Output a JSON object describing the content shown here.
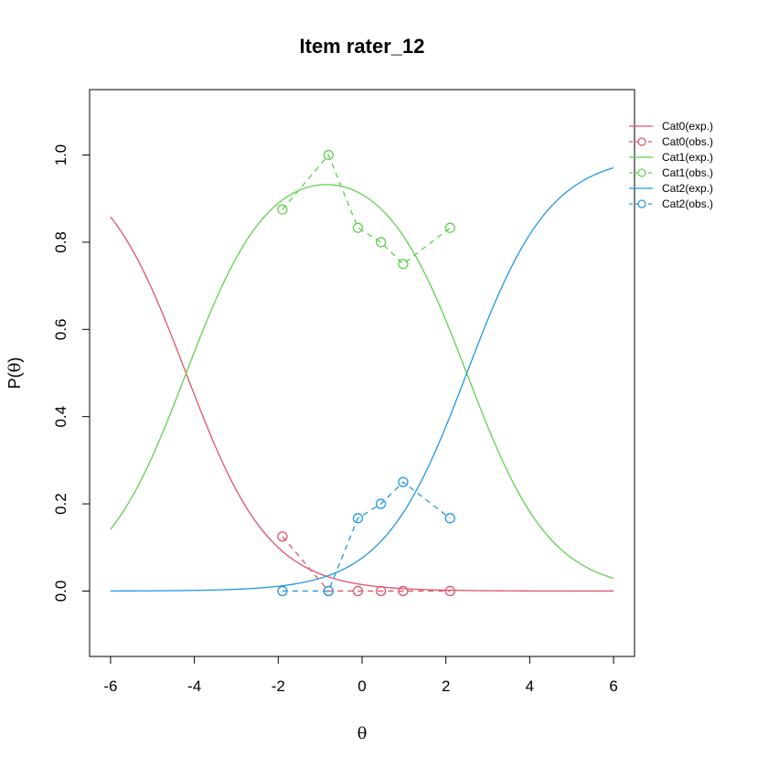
{
  "chart_data": {
    "type": "line",
    "title": "Item rater_12",
    "xlabel": "θ",
    "ylabel_prefix": "P(",
    "ylabel_symbol": "θ",
    "ylabel_suffix": ")",
    "xlim": [
      -6.5,
      6.5
    ],
    "ylim": [
      -0.15,
      1.15
    ],
    "x_ticks": [
      -6,
      -4,
      -2,
      0,
      2,
      4,
      6
    ],
    "x_tick_labels": [
      "-6",
      "-4",
      "-2",
      "0",
      "2",
      "4",
      "6"
    ],
    "y_ticks": [
      0,
      0.2,
      0.4,
      0.6,
      0.8,
      1.0
    ],
    "y_tick_labels": [
      "0.0",
      "0.2",
      "0.4",
      "0.6",
      "0.8",
      "1.0"
    ],
    "grid": false,
    "legend_position": "top-right",
    "curve_x_range": [
      -6,
      6
    ],
    "series": [
      {
        "name": "Cat0(exp.)",
        "kind": "expected",
        "color": "#DF536B",
        "category": 0
      },
      {
        "name": "Cat0(obs.)",
        "kind": "observed",
        "color": "#DF536B",
        "x": [
          -1.9,
          -0.8,
          -0.1,
          0.45,
          0.98,
          2.1
        ],
        "y": [
          0.125,
          0.0,
          0.0,
          0.0,
          0.0,
          0.0
        ]
      },
      {
        "name": "Cat1(exp.)",
        "kind": "expected",
        "color": "#61D04F",
        "category": 1
      },
      {
        "name": "Cat1(obs.)",
        "kind": "observed",
        "color": "#61D04F",
        "x": [
          -1.9,
          -0.8,
          -0.1,
          0.45,
          0.98,
          2.1
        ],
        "y": [
          0.875,
          1.0,
          0.833,
          0.8,
          0.75,
          0.833
        ]
      },
      {
        "name": "Cat2(exp.)",
        "kind": "expected",
        "color": "#2297E6",
        "category": 2
      },
      {
        "name": "Cat2(obs.)",
        "kind": "observed",
        "color": "#2297E6",
        "x": [
          -1.9,
          -0.8,
          -0.1,
          0.45,
          0.98,
          2.1
        ],
        "y": [
          0.0,
          0.0,
          0.167,
          0.2,
          0.25,
          0.167
        ]
      }
    ],
    "model": {
      "thresholds": [
        -4.2,
        2.5
      ],
      "discrimination": 1.0
    }
  }
}
